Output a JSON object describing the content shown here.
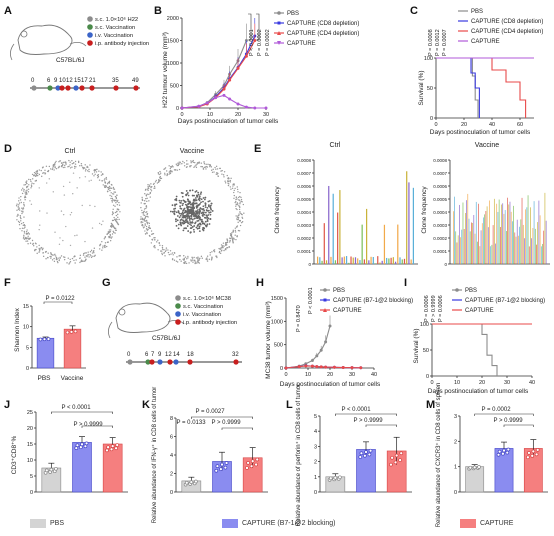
{
  "panels": {
    "A": {
      "label": "A",
      "legend": [
        "s.c. 1.0×10⁶ H22",
        "s.c. Vaccination",
        "i.v. Vaccination",
        "i.p. antibody injection"
      ],
      "mouse": "C57BL/6J",
      "days": [
        "0",
        "6",
        "9",
        "10",
        "12",
        "15",
        "17",
        "21",
        "35",
        "49"
      ]
    },
    "B": {
      "label": "B",
      "ylabel": "H22 tumour volume (mm³)",
      "xlabel": "Days postinoculation of tumor cells",
      "pvalues": [
        "P < 0.0001",
        "P = 0.0002",
        "P = 0.0002"
      ],
      "legend": [
        "PBS",
        "CAPTURE (CD8 depletion)",
        "CAPTURE (CD4 depletion)",
        "CAPTURE"
      ]
    },
    "C": {
      "label": "C",
      "ylabel": "Survival (%)",
      "xlabel": "Days postinoculation of tumor cells",
      "pvalues": [
        "P = 0.0008",
        "P = 0.0012",
        "P = 0.0007"
      ],
      "legend": [
        "PBS",
        "CAPTURE (CD8 depletion)",
        "CAPTURE (CD4 depletion)",
        "CAPTURE"
      ]
    },
    "D": {
      "label": "D",
      "titles": [
        "Ctrl",
        "Vaccine"
      ]
    },
    "E": {
      "label": "E",
      "titles": [
        "Ctrl",
        "Vaccine"
      ],
      "ylabel": "Clone frequency"
    },
    "F": {
      "label": "F",
      "ylabel": "Shannon Index",
      "pvalue": "P = 0.0122",
      "groups": [
        "PBS",
        "Vaccine"
      ]
    },
    "G": {
      "label": "G",
      "legend": [
        "s.c. 1.0×10⁶ MC38",
        "s.c. Vaccination",
        "i.v. Vaccination",
        "i.p. antibody injection"
      ],
      "mouse": "C57BL/6J",
      "days": [
        "0",
        "6",
        "7",
        "9",
        "12",
        "14",
        "18",
        "32"
      ]
    },
    "H": {
      "label": "H",
      "ylabel": "MC38 tumor volume (mm³)",
      "xlabel": "Days postinoculation of tumor cells",
      "pvalues": [
        "P = 0.8470",
        "P < 0.0001"
      ],
      "legend": [
        "PBS",
        "CAPTURE (B7-1@2 blocking)",
        "CAPTURE"
      ]
    },
    "I": {
      "label": "I",
      "ylabel": "Survival (%)",
      "xlabel": "Days postinoculation of tumor cells",
      "pvalues": [
        "P = 0.0006",
        "P > 0.9999",
        "P = 0.0006"
      ],
      "legend": [
        "PBS",
        "CAPTURE (B7-1@2 blocking)",
        "CAPTURE"
      ]
    },
    "J": {
      "label": "J",
      "ylabel": "CD3⁺CD8⁺%",
      "pvalues": [
        "P < 0.0001",
        "P > 0.9999"
      ]
    },
    "K": {
      "label": "K",
      "ylabel": "Relative abundance of IFN-γ⁺ in CD8 cells of tumor",
      "pvalues": [
        "P = 0.0027",
        "P = 0.0133",
        "P > 0.9999"
      ]
    },
    "L": {
      "label": "L",
      "ylabel": "Relative abundance of perforin⁺ in CD8 cells of tumor",
      "pvalues": [
        "P < 0.0001",
        "P > 0.9999"
      ]
    },
    "M": {
      "label": "M",
      "ylabel": "Relative abundance of CXCR3⁺ in CD8 cells of spleen",
      "pvalues": [
        "P = 0.0002",
        "P > 0.9999"
      ]
    }
  },
  "bottom_legend": [
    "PBS",
    "CAPTURE (B7-1@2 blocking)",
    "CAPTURE"
  ],
  "colors": {
    "pbs": "#8c8c8c",
    "cd8": "#3a3ae0",
    "cd4": "#e84a4a",
    "capture": "#b05ad8",
    "pbs_bar": "#d4d4d4",
    "blue_bar": "#8a8cf0",
    "red_bar": "#f57f7f",
    "sc": "#8c8c8c",
    "sv": "#4a8a4a",
    "iv": "#3b64c8",
    "ip": "#c81e1e"
  },
  "chart_data": [
    {
      "panel": "B",
      "type": "line",
      "title": "",
      "xlabel": "Days postinoculation of tumor cells",
      "ylabel": "H22 tumour volume (mm³)",
      "xlim": [
        0,
        30
      ],
      "ylim": [
        0,
        2000
      ],
      "xticks": [
        0,
        10,
        20,
        30
      ],
      "yticks": [
        0,
        500,
        1000,
        1500,
        2000
      ],
      "series": [
        {
          "name": "PBS",
          "x": [
            0,
            6,
            9,
            12,
            15,
            17,
            20,
            23
          ],
          "y": [
            0,
            40,
            120,
            300,
            500,
            750,
            1050,
            1500
          ]
        },
        {
          "name": "CAPTURE (CD8 depletion)",
          "x": [
            0,
            6,
            9,
            12,
            15,
            17,
            20,
            23,
            26
          ],
          "y": [
            0,
            30,
            100,
            250,
            450,
            650,
            900,
            1200,
            1600
          ]
        },
        {
          "name": "CAPTURE (CD4 depletion)",
          "x": [
            0,
            6,
            9,
            12,
            15,
            17,
            20,
            23,
            26
          ],
          "y": [
            0,
            30,
            90,
            230,
            420,
            620,
            880,
            1150,
            1500
          ]
        },
        {
          "name": "CAPTURE",
          "x": [
            0,
            6,
            9,
            12,
            15,
            17,
            20,
            23,
            26,
            30
          ],
          "y": [
            0,
            40,
            110,
            230,
            280,
            200,
            90,
            20,
            0,
            0
          ]
        }
      ]
    },
    {
      "panel": "C",
      "type": "line",
      "title": "",
      "xlabel": "Days postinoculation of tumor cells",
      "ylabel": "Survival (%)",
      "xlim": [
        0,
        70
      ],
      "ylim": [
        0,
        100
      ],
      "xticks": [
        0,
        20,
        40,
        60
      ],
      "yticks": [
        0,
        50,
        100
      ],
      "series": [
        {
          "name": "PBS",
          "x": [
            0,
            24,
            26,
            28,
            30
          ],
          "y": [
            100,
            100,
            70,
            30,
            0
          ]
        },
        {
          "name": "CAPTURE (CD8 depletion)",
          "x": [
            0,
            22,
            25,
            28,
            31
          ],
          "y": [
            100,
            100,
            75,
            50,
            0
          ]
        },
        {
          "name": "CAPTURE (CD4 depletion)",
          "x": [
            0,
            35,
            40,
            50,
            60,
            64
          ],
          "y": [
            100,
            100,
            80,
            60,
            30,
            0
          ]
        },
        {
          "name": "CAPTURE",
          "x": [
            0,
            70
          ],
          "y": [
            100,
            100
          ]
        }
      ]
    },
    {
      "panel": "F",
      "type": "bar",
      "title": "",
      "xlabel": "",
      "ylabel": "Shannon Index",
      "categories": [
        "PBS",
        "Vaccine"
      ],
      "values": [
        7.2,
        9.4
      ],
      "errors": [
        0.3,
        0.8
      ],
      "ylim": [
        0,
        15
      ],
      "yticks": [
        0,
        5,
        10,
        15
      ]
    },
    {
      "panel": "H",
      "type": "line",
      "title": "",
      "xlabel": "Days postinoculation of tumor cells",
      "ylabel": "MC38 tumor volume (mm³)",
      "xlim": [
        0,
        40
      ],
      "ylim": [
        0,
        1500
      ],
      "xticks": [
        0,
        10,
        20,
        30,
        40
      ],
      "yticks": [
        0,
        500,
        1000,
        1500
      ],
      "series": [
        {
          "name": "PBS",
          "x": [
            0,
            6,
            9,
            12,
            14,
            16,
            18,
            20
          ],
          "y": [
            0,
            40,
            90,
            160,
            260,
            380,
            560,
            900
          ]
        },
        {
          "name": "CAPTURE (B7-1@2 blocking)",
          "x": [
            0,
            6,
            9,
            12,
            14,
            16,
            18,
            22,
            26,
            30,
            34
          ],
          "y": [
            0,
            30,
            50,
            40,
            30,
            25,
            20,
            15,
            10,
            8,
            5
          ]
        },
        {
          "name": "CAPTURE",
          "x": [
            0,
            6,
            9,
            12,
            14,
            16,
            18,
            22,
            26,
            30,
            34
          ],
          "y": [
            0,
            30,
            45,
            40,
            30,
            25,
            20,
            15,
            10,
            8,
            5
          ]
        }
      ]
    },
    {
      "panel": "I",
      "type": "line",
      "title": "",
      "xlabel": "Days postinoculation of tumor cells",
      "ylabel": "Survival (%)",
      "xlim": [
        0,
        40
      ],
      "ylim": [
        0,
        100
      ],
      "xticks": [
        0,
        10,
        20,
        30,
        40
      ],
      "yticks": [
        0,
        50,
        100
      ],
      "series": [
        {
          "name": "PBS",
          "x": [
            0,
            18,
            20,
            22,
            24,
            26
          ],
          "y": [
            100,
            100,
            80,
            40,
            20,
            0
          ]
        },
        {
          "name": "CAPTURE (B7-1@2 blocking)",
          "x": [
            0,
            40
          ],
          "y": [
            100,
            100
          ]
        },
        {
          "name": "CAPTURE",
          "x": [
            0,
            40
          ],
          "y": [
            100,
            100
          ]
        }
      ]
    },
    {
      "panel": "J",
      "type": "bar",
      "title": "",
      "xlabel": "",
      "ylabel": "CD3⁺CD8⁺%",
      "categories": [
        "PBS",
        "CAPTURE (B7-1@2 blocking)",
        "CAPTURE"
      ],
      "values": [
        7.5,
        15.5,
        15.0
      ],
      "errors": [
        1.5,
        1.8,
        2.0
      ],
      "ylim": [
        0,
        25
      ],
      "yticks": [
        0,
        5,
        10,
        15,
        20,
        25
      ]
    },
    {
      "panel": "K",
      "type": "bar",
      "title": "",
      "xlabel": "",
      "ylabel": "Relative abundance of IFN-γ⁺ in CD8 cells of tumor",
      "categories": [
        "PBS",
        "CAPTURE (B7-1@2 blocking)",
        "CAPTURE"
      ],
      "values": [
        1.2,
        3.3,
        3.7
      ],
      "errors": [
        0.4,
        1.0,
        1.1
      ],
      "ylim": [
        0,
        8
      ],
      "yticks": [
        0,
        2,
        4,
        6,
        8
      ]
    },
    {
      "panel": "L",
      "type": "bar",
      "title": "",
      "xlabel": "",
      "ylabel": "Relative abundance of perforin⁺ in CD8 cells of tumor",
      "categories": [
        "PBS",
        "CAPTURE (B7-1@2 blocking)",
        "CAPTURE"
      ],
      "values": [
        1.0,
        2.8,
        2.7
      ],
      "errors": [
        0.2,
        0.5,
        0.9
      ],
      "ylim": [
        0,
        5
      ],
      "yticks": [
        0,
        1,
        2,
        3,
        4,
        5
      ]
    },
    {
      "panel": "M",
      "type": "bar",
      "title": "",
      "xlabel": "",
      "ylabel": "Relative abundance of CXCR3⁺ in CD8 cells of spleen",
      "categories": [
        "PBS",
        "CAPTURE (B7-1@2 blocking)",
        "CAPTURE"
      ],
      "values": [
        1.0,
        1.72,
        1.72
      ],
      "errors": [
        0.08,
        0.25,
        0.35
      ],
      "ylim": [
        0,
        3
      ],
      "yticks": [
        0,
        1,
        2,
        3
      ]
    }
  ]
}
